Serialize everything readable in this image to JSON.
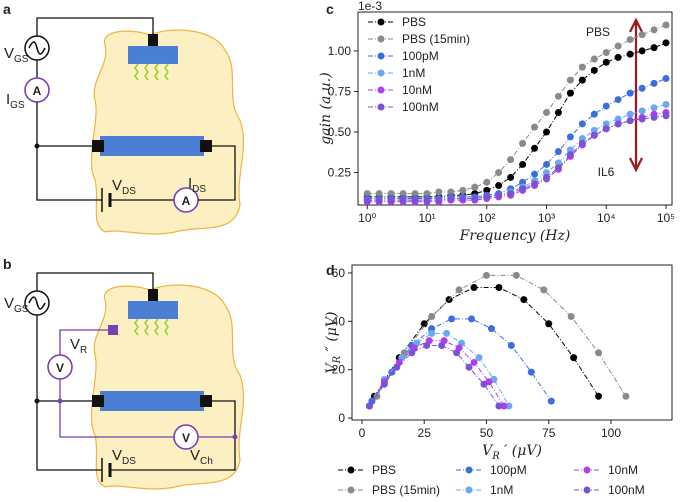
{
  "chart_data": [
    {
      "type": "line",
      "label": "c",
      "xscale": "log",
      "offset_text": "1e-3",
      "ylabel": "gain (a.u.)",
      "xlabel": "Frequency (Hz)",
      "xlim": [
        0.7,
        126000
      ],
      "ylim": [
        0.05,
        1.24
      ],
      "xticks": [
        {
          "value": 1,
          "label": "10⁰"
        },
        {
          "value": 10,
          "label": "10¹"
        },
        {
          "value": 100,
          "label": "10²"
        },
        {
          "value": 1000,
          "label": "10³"
        },
        {
          "value": 10000,
          "label": "10⁴"
        },
        {
          "value": 100000,
          "label": "10⁵"
        }
      ],
      "yticks": [
        0.25,
        {
          "value": 0.5,
          "label": "0.50"
        },
        0.75,
        {
          "value": 1,
          "label": "1.00"
        }
      ],
      "legend": "upper left",
      "annotations": [
        {
          "text": "PBS"
        },
        {
          "text": "IL6"
        }
      ],
      "x": [
        1,
        1.58,
        2.51,
        3.98,
        6.31,
        10,
        15.8,
        25.1,
        39.8,
        63.1,
        100,
        158,
        251,
        398,
        631,
        1000,
        1580,
        2510,
        3980,
        6310,
        10000,
        15800,
        25100,
        39800,
        63100,
        100000
      ],
      "series": [
        {
          "name": "PBS",
          "color": "#000000",
          "values": [
            0.1,
            0.1,
            0.1,
            0.1,
            0.1,
            0.1,
            0.1,
            0.11,
            0.11,
            0.12,
            0.14,
            0.17,
            0.22,
            0.3,
            0.4,
            0.5,
            0.62,
            0.74,
            0.82,
            0.88,
            0.93,
            0.96,
            0.98,
            1.0,
            1.02,
            1.05
          ]
        },
        {
          "name": "PBS (15min)",
          "color": "#8a8a8a",
          "values": [
            0.12,
            0.12,
            0.12,
            0.12,
            0.12,
            0.12,
            0.13,
            0.13,
            0.14,
            0.16,
            0.19,
            0.25,
            0.33,
            0.43,
            0.53,
            0.62,
            0.72,
            0.82,
            0.9,
            0.95,
            0.99,
            1.03,
            1.07,
            1.1,
            1.13,
            1.16
          ]
        },
        {
          "name": "100pM",
          "color": "#3b6fdc",
          "values": [
            0.09,
            0.09,
            0.09,
            0.09,
            0.09,
            0.09,
            0.09,
            0.1,
            0.1,
            0.1,
            0.11,
            0.12,
            0.15,
            0.19,
            0.24,
            0.3,
            0.38,
            0.47,
            0.55,
            0.61,
            0.66,
            0.7,
            0.74,
            0.77,
            0.8,
            0.83
          ]
        },
        {
          "name": "1nM",
          "color": "#6aa9f0",
          "values": [
            0.08,
            0.08,
            0.08,
            0.08,
            0.08,
            0.08,
            0.08,
            0.09,
            0.09,
            0.09,
            0.1,
            0.11,
            0.13,
            0.16,
            0.2,
            0.25,
            0.31,
            0.39,
            0.46,
            0.51,
            0.55,
            0.58,
            0.61,
            0.63,
            0.65,
            0.67
          ]
        },
        {
          "name": "10nM",
          "color": "#b23cf0",
          "values": [
            0.07,
            0.07,
            0.07,
            0.07,
            0.07,
            0.07,
            0.07,
            0.08,
            0.08,
            0.08,
            0.09,
            0.1,
            0.11,
            0.14,
            0.17,
            0.21,
            0.27,
            0.35,
            0.42,
            0.48,
            0.52,
            0.55,
            0.57,
            0.59,
            0.61,
            0.62
          ]
        },
        {
          "name": "100nM",
          "color": "#7b52d6",
          "values": [
            0.08,
            0.08,
            0.08,
            0.08,
            0.08,
            0.08,
            0.08,
            0.09,
            0.09,
            0.09,
            0.1,
            0.11,
            0.12,
            0.15,
            0.18,
            0.22,
            0.28,
            0.36,
            0.43,
            0.48,
            0.52,
            0.55,
            0.57,
            0.58,
            0.59,
            0.6
          ]
        }
      ]
    },
    {
      "type": "line",
      "label": "d",
      "ylabel": {
        "main": "V",
        "sub": "R",
        "tail": " ″ (μV)"
      },
      "xlabel": {
        "main": "V",
        "sub": "R",
        "tail": " ′ (μV)"
      },
      "xlim": [
        -4,
        124.5
      ],
      "ylim": [
        -0.8,
        63.3
      ],
      "xticks": [
        0,
        25,
        50,
        75,
        100
      ],
      "yticks": [
        0,
        20,
        40,
        60
      ],
      "legend": "bottom outside",
      "series": [
        {
          "name": "PBS",
          "color": "#000000",
          "x": [
            5,
            15,
            25,
            35,
            45,
            55,
            65,
            75,
            85,
            95
          ],
          "values": [
            9,
            25,
            39,
            49,
            54,
            54,
            49,
            39,
            25,
            9
          ]
        },
        {
          "name": "PBS (15min)",
          "color": "#8a8a8a",
          "x": [
            6,
            17,
            28,
            39,
            50,
            62,
            73,
            84,
            95,
            106
          ],
          "values": [
            9,
            27,
            42,
            53,
            59,
            59,
            53,
            42,
            27,
            9
          ]
        },
        {
          "name": "100pM",
          "color": "#3b6fdc",
          "x": [
            4,
            12,
            20,
            28,
            36,
            44,
            52,
            60,
            68,
            76
          ],
          "values": [
            7,
            19,
            30,
            37,
            41,
            41,
            37,
            30,
            19,
            7
          ]
        },
        {
          "name": "1nM",
          "color": "#6aa9f0",
          "x": [
            3,
            9,
            16,
            22,
            28,
            34,
            40,
            47,
            53,
            59
          ],
          "values": [
            5,
            16,
            25,
            31,
            35,
            35,
            31,
            25,
            16,
            5
          ]
        },
        {
          "name": "10nM",
          "color": "#b23cf0",
          "x": [
            3,
            9,
            15,
            21,
            27,
            33,
            39,
            45,
            51,
            57
          ],
          "values": [
            5,
            15,
            23,
            29,
            32,
            32,
            29,
            23,
            15,
            5
          ]
        },
        {
          "name": "100nM",
          "color": "#7b52d6",
          "x": [
            3,
            9,
            14,
            20,
            26,
            32,
            38,
            43,
            49,
            55
          ],
          "values": [
            5,
            14,
            21,
            27,
            30,
            30,
            27,
            21,
            14,
            5
          ]
        }
      ]
    }
  ],
  "diagrams": [
    {
      "label": "a",
      "labels": [
        {
          "main": "V",
          "sub": "GS"
        },
        {
          "main": "I",
          "sub": "GS"
        },
        {
          "main": "V",
          "sub": "DS"
        },
        {
          "main": "I",
          "sub": "DS"
        }
      ],
      "meters": [
        "A",
        "A"
      ]
    },
    {
      "label": "b",
      "labels": [
        {
          "main": "V",
          "sub": "GS"
        },
        {
          "main": "V",
          "sub": "R"
        },
        {
          "main": "V",
          "sub": "DS"
        },
        {
          "main": "V",
          "sub": "Ch"
        }
      ],
      "meters": [
        "V",
        "V"
      ]
    }
  ]
}
